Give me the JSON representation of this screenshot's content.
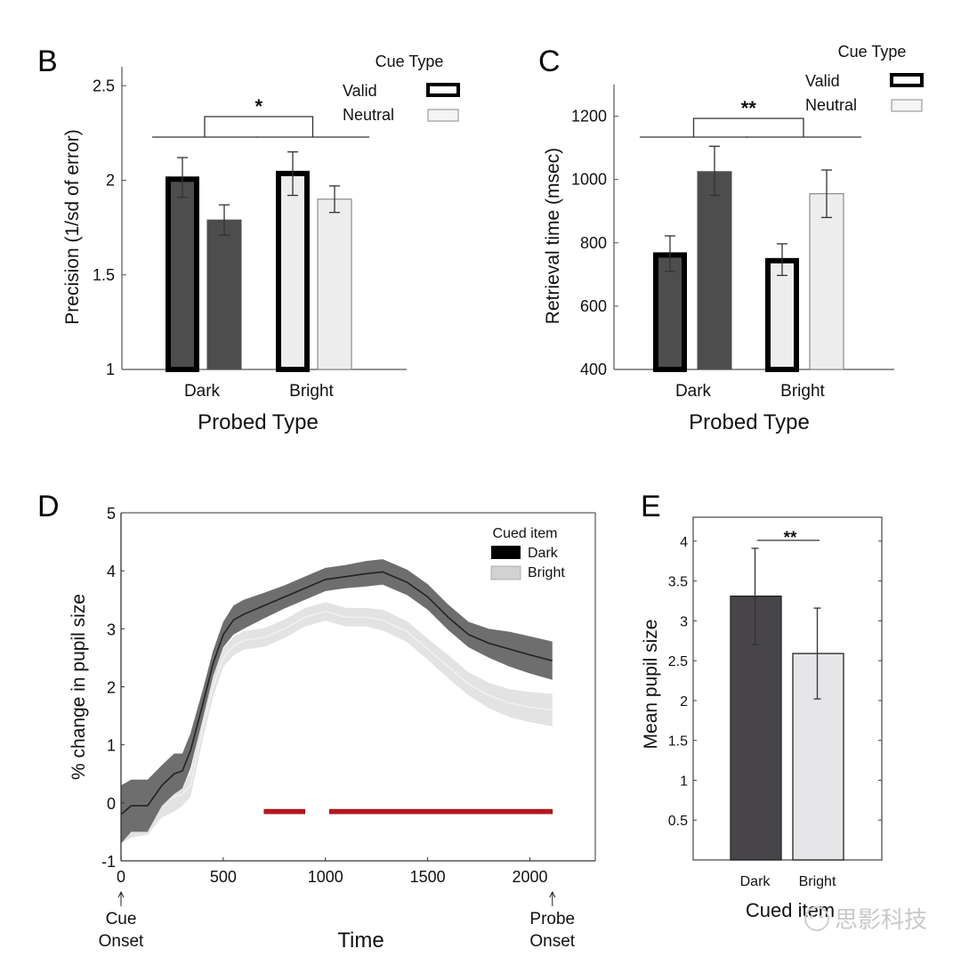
{
  "watermark": "思影科技",
  "chart_data": [
    {
      "panel": "B",
      "type": "bar",
      "title": "",
      "xlabel": "Probed Type",
      "ylabel": "Precision (1/sd of error)",
      "categories": [
        "Dark",
        "Bright"
      ],
      "ylim": [
        1,
        2.6
      ],
      "yticks": [
        1,
        1.5,
        2,
        2.5
      ],
      "ytick_labels": [
        "1",
        "1.5",
        "2",
        "2.5"
      ],
      "legend": {
        "title": "Cue Type",
        "entries": [
          "Valid",
          "Neutral"
        ],
        "position": "top-right"
      },
      "series": [
        {
          "name": "Valid",
          "values": [
            2.02,
            2.05
          ],
          "err_low": [
            1.91,
            1.92
          ],
          "err_high": [
            2.12,
            2.15
          ]
        },
        {
          "name": "Neutral",
          "values": [
            1.79,
            1.9
          ],
          "err_low": [
            1.71,
            1.83
          ],
          "err_high": [
            1.87,
            1.97
          ]
        }
      ],
      "bar_fill_by_category": {
        "Dark": "#4d4d4d",
        "Bright": "#ededed"
      },
      "significance": "*",
      "grid": false
    },
    {
      "panel": "C",
      "type": "bar",
      "title": "",
      "xlabel": "Probed Type",
      "ylabel": "Retrieval time (msec)",
      "categories": [
        "Dark",
        "Bright"
      ],
      "ylim": [
        400,
        1300
      ],
      "yticks": [
        400,
        600,
        800,
        1000,
        1200
      ],
      "ytick_labels": [
        "400",
        "600",
        "800",
        "1000",
        "1200"
      ],
      "legend": {
        "title": "Cue Type",
        "entries": [
          "Valid",
          "Neutral"
        ],
        "position": "top-right"
      },
      "series": [
        {
          "name": "Valid",
          "values": [
            770,
            752
          ],
          "err_low": [
            710,
            697
          ],
          "err_high": [
            822,
            797
          ]
        },
        {
          "name": "Neutral",
          "values": [
            1025,
            955
          ],
          "err_low": [
            950,
            880
          ],
          "err_high": [
            1105,
            1030
          ]
        }
      ],
      "bar_fill_by_category": {
        "Dark": "#4d4d4d",
        "Bright": "#ededed"
      },
      "significance": "**",
      "grid": false
    },
    {
      "panel": "D",
      "type": "line",
      "title": "",
      "xlabel": "Time",
      "ylabel": "% change in pupil size",
      "xlim": [
        0,
        2320
      ],
      "ylim": [
        -1,
        5
      ],
      "xticks": [
        0,
        500,
        1000,
        1500,
        2000
      ],
      "xtick_labels": [
        "0",
        "500",
        "1000",
        "1500",
        "2000"
      ],
      "yticks": [
        -1,
        0,
        1,
        2,
        3,
        4,
        5
      ],
      "ytick_labels": [
        "-1",
        "0",
        "1",
        "2",
        "3",
        "4",
        "5"
      ],
      "annotations": [
        {
          "text_lines": [
            "Cue",
            "Onset"
          ],
          "x": 0
        },
        {
          "text_lines": [
            "Probe",
            "Onset"
          ],
          "x": 2110
        }
      ],
      "legend": {
        "title": "Cued item",
        "entries": [
          "Dark",
          "Bright"
        ],
        "position": "top-right"
      },
      "x": [
        0,
        50,
        130,
        200,
        260,
        300,
        340,
        400,
        450,
        500,
        550,
        600,
        700,
        800,
        900,
        1000,
        1100,
        1200,
        1280,
        1400,
        1500,
        1600,
        1700,
        1800,
        1900,
        2000,
        2110
      ],
      "series": [
        {
          "name": "Dark",
          "color": "#222222",
          "band_color": "#6e6e6e",
          "values": [
            -0.2,
            -0.05,
            -0.05,
            0.3,
            0.5,
            0.55,
            0.9,
            1.7,
            2.4,
            2.9,
            3.15,
            3.25,
            3.4,
            3.55,
            3.7,
            3.85,
            3.9,
            3.95,
            3.98,
            3.8,
            3.55,
            3.2,
            2.9,
            2.75,
            2.65,
            2.55,
            2.45
          ],
          "band_halfwidth": [
            0.5,
            0.45,
            0.45,
            0.35,
            0.35,
            0.3,
            0.3,
            0.25,
            0.22,
            0.22,
            0.25,
            0.25,
            0.22,
            0.2,
            0.2,
            0.2,
            0.2,
            0.22,
            0.22,
            0.22,
            0.22,
            0.22,
            0.22,
            0.25,
            0.3,
            0.32,
            0.33
          ]
        },
        {
          "name": "Bright",
          "color": "#f2f2f2",
          "band_color": "#e3e3e3",
          "values": [
            -0.4,
            -0.3,
            -0.25,
            0.0,
            0.1,
            0.15,
            0.3,
            1.3,
            2.0,
            2.5,
            2.7,
            2.8,
            2.85,
            3.0,
            3.2,
            3.3,
            3.2,
            3.2,
            3.15,
            2.95,
            2.65,
            2.35,
            2.05,
            1.85,
            1.72,
            1.65,
            1.6
          ],
          "band_halfwidth": [
            0.3,
            0.3,
            0.3,
            0.25,
            0.25,
            0.2,
            0.2,
            0.2,
            0.18,
            0.16,
            0.16,
            0.16,
            0.16,
            0.16,
            0.16,
            0.16,
            0.16,
            0.16,
            0.18,
            0.18,
            0.18,
            0.2,
            0.2,
            0.22,
            0.24,
            0.26,
            0.28
          ]
        }
      ],
      "significance_bars": [
        {
          "start": 700,
          "end": 900,
          "y": -0.15,
          "color": "#c0141c"
        },
        {
          "start": 1020,
          "end": 2110,
          "y": -0.15,
          "color": "#c0141c"
        }
      ],
      "grid": false
    },
    {
      "panel": "E",
      "type": "bar",
      "title": "",
      "xlabel": "Cued item",
      "ylabel": "Mean pupil size",
      "categories": [
        "Dark",
        "Bright"
      ],
      "ylim": [
        0,
        4.3
      ],
      "yticks": [
        0.5,
        1,
        1.5,
        2,
        2.5,
        3,
        3.5,
        4
      ],
      "ytick_labels": [
        "0.5",
        "1",
        "1.5",
        "2",
        "2.5",
        "3",
        "3.5",
        "4"
      ],
      "values": [
        3.31,
        2.59
      ],
      "err_low": [
        2.7,
        2.02
      ],
      "err_high": [
        3.91,
        3.16
      ],
      "colors": [
        "#474549",
        "#e6e5e8"
      ],
      "significance": "**",
      "grid": false
    }
  ]
}
